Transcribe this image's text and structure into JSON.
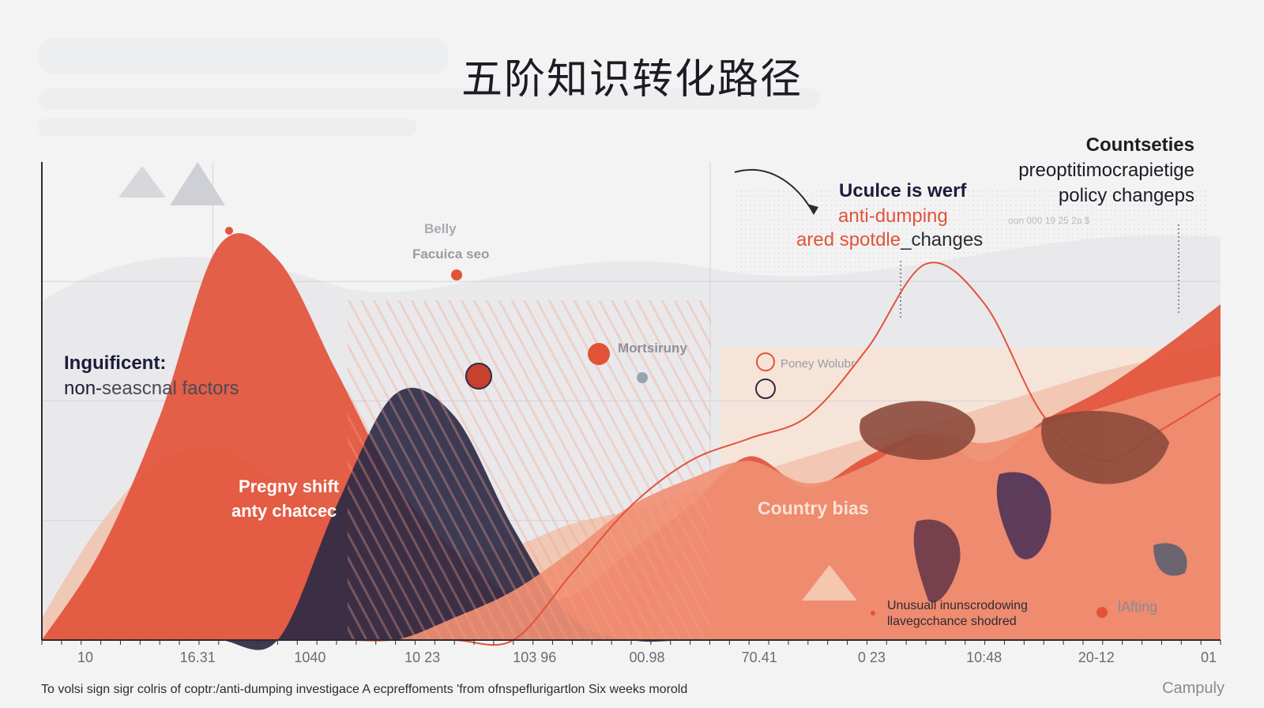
{
  "title": "五阶知识转化路径",
  "annotations": {
    "top_right_head": "Countseties",
    "top_right_l1": "preoptitimocrapietige",
    "top_right_l2": "policy changeps",
    "mid_head": "Uculce is werf",
    "mid_l1": "anti-dumping",
    "mid_l2a": "ared spotdle",
    "mid_l2b": "_changes",
    "left_head": "Inguificent:",
    "left_l1a": "non-",
    "left_l1b": "seascnal factors",
    "peak_l1": "Pregny shift",
    "peak_l2": "anty chatcec",
    "ghost1": "Belly",
    "ghost2": "Facuica seo",
    "mort": "Mortsiruny",
    "poney": "Poney Wolubr",
    "country": "Country bias",
    "unusual_l1": "Unusuall inunscrodowing",
    "unusual_l2": "llavegcchance shodred",
    "lifting": "lAfting",
    "tiny_row": "oun     000  19        25  2a       $"
  },
  "chart_data": {
    "type": "area",
    "x_tick_labels": [
      "10",
      "16.31",
      "1040",
      "10 23",
      "103 96",
      "00.98",
      "70.41",
      "0 23",
      "10:48",
      "20-12",
      "01"
    ],
    "series": [
      {
        "color": "#f1c2ad",
        "values": [
          10,
          52,
          80,
          86,
          70,
          55,
          46,
          38,
          42,
          52,
          58,
          66,
          74,
          82,
          90,
          96,
          104,
          112,
          120,
          126,
          132
        ]
      },
      {
        "color": "#e2533a",
        "values": [
          0,
          40,
          100,
          176,
          170,
          120,
          70,
          40,
          20,
          20,
          40,
          60,
          82,
          68,
          82,
          92,
          80,
          98,
          112,
          130,
          150
        ]
      },
      {
        "color": "#2e2a45",
        "values": [
          0,
          0,
          0,
          0,
          0,
          60,
          110,
          100,
          50,
          10,
          0,
          0,
          0,
          0,
          0,
          0,
          0,
          0,
          0,
          0,
          0
        ]
      },
      {
        "color": "#f08f73",
        "values": [
          0,
          0,
          0,
          0,
          0,
          0,
          0,
          10,
          22,
          40,
          60,
          72,
          80,
          70,
          78,
          92,
          88,
          96,
          104,
          112,
          118
        ]
      }
    ],
    "line": {
      "color": "#e2533a",
      "values": [
        0,
        0,
        0,
        0,
        0,
        0,
        0,
        0,
        0,
        30,
        60,
        80,
        90,
        100,
        130,
        168,
        150,
        100,
        80,
        94,
        110
      ]
    },
    "ylim": [
      0,
      180
    ],
    "grid": true
  },
  "footer": "To volsi sign sigr colris of coptr:/anti-dumping investigace A ecpreffoments 'from ofnspeflurigartlon Six weeks morold",
  "brand": "Campuly",
  "colors": {
    "accent": "#e2533a",
    "navy": "#2e2a45",
    "peach": "#f1c2ad"
  }
}
